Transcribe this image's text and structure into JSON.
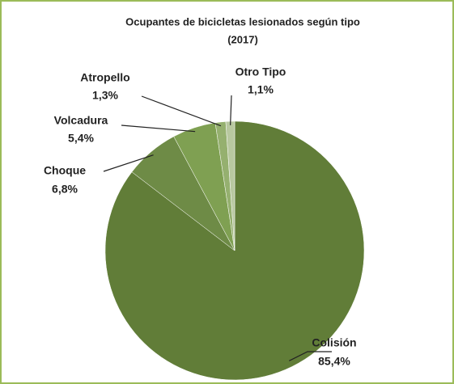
{
  "chart_data": {
    "type": "pie",
    "title_lines": [
      "Ocupantes de bicicletas lesionados según tipo",
      "(2017)"
    ],
    "categories": [
      "Colisión",
      "Choque",
      "Volcadura",
      "Atropello",
      "Otro Tipo"
    ],
    "values": [
      85.4,
      6.8,
      5.4,
      1.3,
      1.1
    ],
    "value_labels": [
      "85,4%",
      "6,8%",
      "5,4%",
      "1,3%",
      "1,1%"
    ],
    "colors": [
      "#617d38",
      "#6e8b46",
      "#7fa052",
      "#95b06f",
      "#b8c8a0"
    ]
  }
}
